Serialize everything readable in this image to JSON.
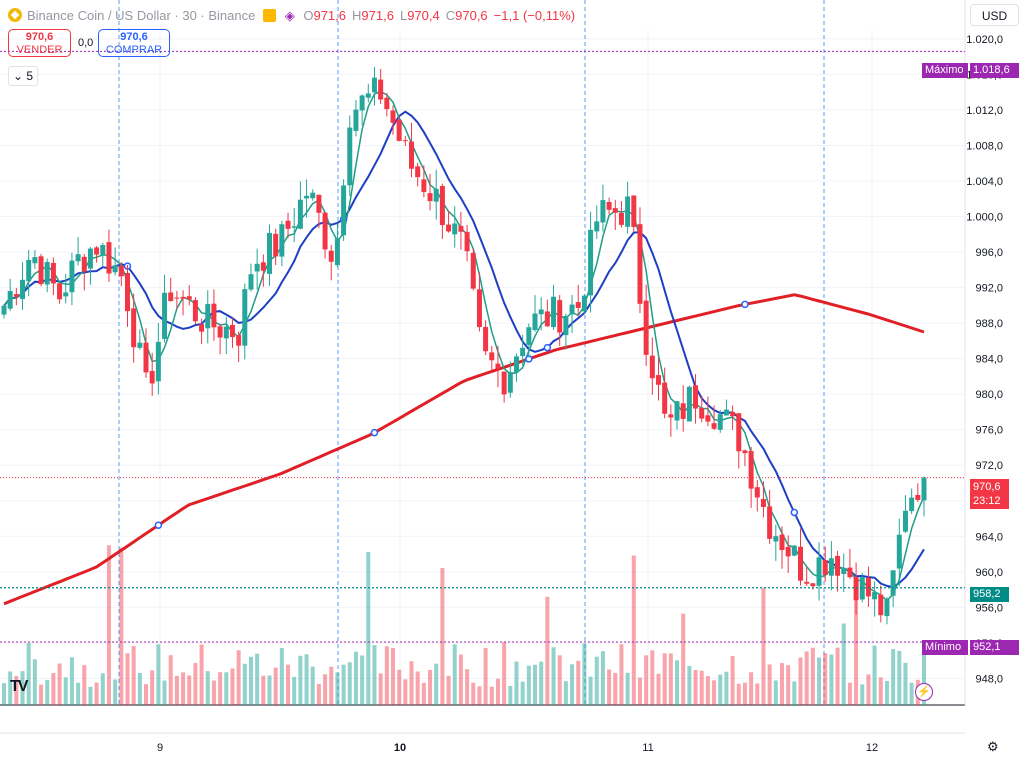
{
  "header": {
    "symbol": "Binance Coin / US Dollar · 30 · Binance",
    "open_label": "O",
    "open": "971,6",
    "high_label": "H",
    "high": "971,6",
    "low_label": "L",
    "low": "970,4",
    "close_label": "C",
    "close": "970,6",
    "change": "−1,1 (−0,11%)"
  },
  "trade": {
    "sell_price": "970,6",
    "sell_label": "VENDER",
    "spread": "0,0",
    "buy_price": "970,6",
    "buy_label": "COMPRAR"
  },
  "indicators_badge": "5",
  "currency": "USD",
  "price_tags": {
    "max_label": "Máximo",
    "max_value": "1.018,6",
    "min_label": "Mínimo",
    "min_value": "952,1",
    "current_price": "970,6",
    "countdown": "23:12",
    "line_value": "958,2"
  },
  "colors": {
    "up": "#26a69a",
    "down": "#f23645",
    "ma_red": "#e01f26",
    "ma_blue": "#1e3fc4",
    "ma_green": "#1e9e85",
    "marker": "#9c27b0"
  },
  "chart_data": {
    "type": "candlestick",
    "y_ticks": [
      "1.020,0",
      "1.016,0",
      "1.012,0",
      "1.008,0",
      "1.004,0",
      "1.000,0",
      "996,0",
      "992,0",
      "988,0",
      "984,0",
      "980,0",
      "976,0",
      "972,0",
      "968,0",
      "964,0",
      "960,0",
      "956,0",
      "952,0",
      "948,0"
    ],
    "x_ticks": [
      "9",
      "10",
      "11",
      "12"
    ],
    "ylim": [
      945,
      1021
    ],
    "session_day_boundaries": true,
    "price_anchors": [
      {
        "t": 0,
        "p": 990
      },
      {
        "t": 0.03,
        "p": 996
      },
      {
        "t": 0.06,
        "p": 991
      },
      {
        "t": 0.08,
        "p": 995
      },
      {
        "t": 0.1,
        "p": 997
      },
      {
        "t": 0.13,
        "p": 993
      },
      {
        "t": 0.155,
        "p": 980
      },
      {
        "t": 0.18,
        "p": 992
      },
      {
        "t": 0.22,
        "p": 988
      },
      {
        "t": 0.255,
        "p": 987
      },
      {
        "t": 0.27,
        "p": 995
      },
      {
        "t": 0.3,
        "p": 997
      },
      {
        "t": 0.33,
        "p": 1003
      },
      {
        "t": 0.36,
        "p": 995
      },
      {
        "t": 0.375,
        "p": 1012
      },
      {
        "t": 0.41,
        "p": 1014
      },
      {
        "t": 0.44,
        "p": 1006
      },
      {
        "t": 0.47,
        "p": 1002
      },
      {
        "t": 0.5,
        "p": 996
      },
      {
        "t": 0.52,
        "p": 984
      },
      {
        "t": 0.545,
        "p": 982
      },
      {
        "t": 0.57,
        "p": 988
      },
      {
        "t": 0.6,
        "p": 989
      },
      {
        "t": 0.625,
        "p": 990
      },
      {
        "t": 0.645,
        "p": 1000
      },
      {
        "t": 0.68,
        "p": 1001
      },
      {
        "t": 0.695,
        "p": 988
      },
      {
        "t": 0.72,
        "p": 976
      },
      {
        "t": 0.75,
        "p": 980
      },
      {
        "t": 0.775,
        "p": 978
      },
      {
        "t": 0.8,
        "p": 975
      },
      {
        "t": 0.83,
        "p": 966
      },
      {
        "t": 0.87,
        "p": 960
      },
      {
        "t": 0.9,
        "p": 962
      },
      {
        "t": 0.935,
        "p": 958
      },
      {
        "t": 0.96,
        "p": 955
      },
      {
        "t": 0.98,
        "p": 968
      },
      {
        "t": 1,
        "p": 971
      }
    ],
    "red_ma": [
      {
        "t": 0,
        "p": 956.4
      },
      {
        "t": 0.1,
        "p": 960.5
      },
      {
        "t": 0.2,
        "p": 967.5
      },
      {
        "t": 0.3,
        "p": 971
      },
      {
        "t": 0.4,
        "p": 975.5
      },
      {
        "t": 0.5,
        "p": 981.5
      },
      {
        "t": 0.6,
        "p": 985
      },
      {
        "t": 0.7,
        "p": 987.5
      },
      {
        "t": 0.8,
        "p": 990
      },
      {
        "t": 0.86,
        "p": 991.2
      },
      {
        "t": 0.94,
        "p": 989
      },
      {
        "t": 1,
        "p": 987
      }
    ],
    "series": [
      {
        "name": "",
        "kind": "ohlc_candles",
        "count": 150
      },
      {
        "name": "",
        "kind": "volume",
        "count": 150
      },
      {
        "name": "",
        "kind": "moving_average",
        "color": "ma_red"
      },
      {
        "name": "",
        "kind": "moving_average",
        "color": "ma_blue"
      },
      {
        "name": "",
        "kind": "moving_average",
        "color": "ma_green"
      }
    ]
  }
}
